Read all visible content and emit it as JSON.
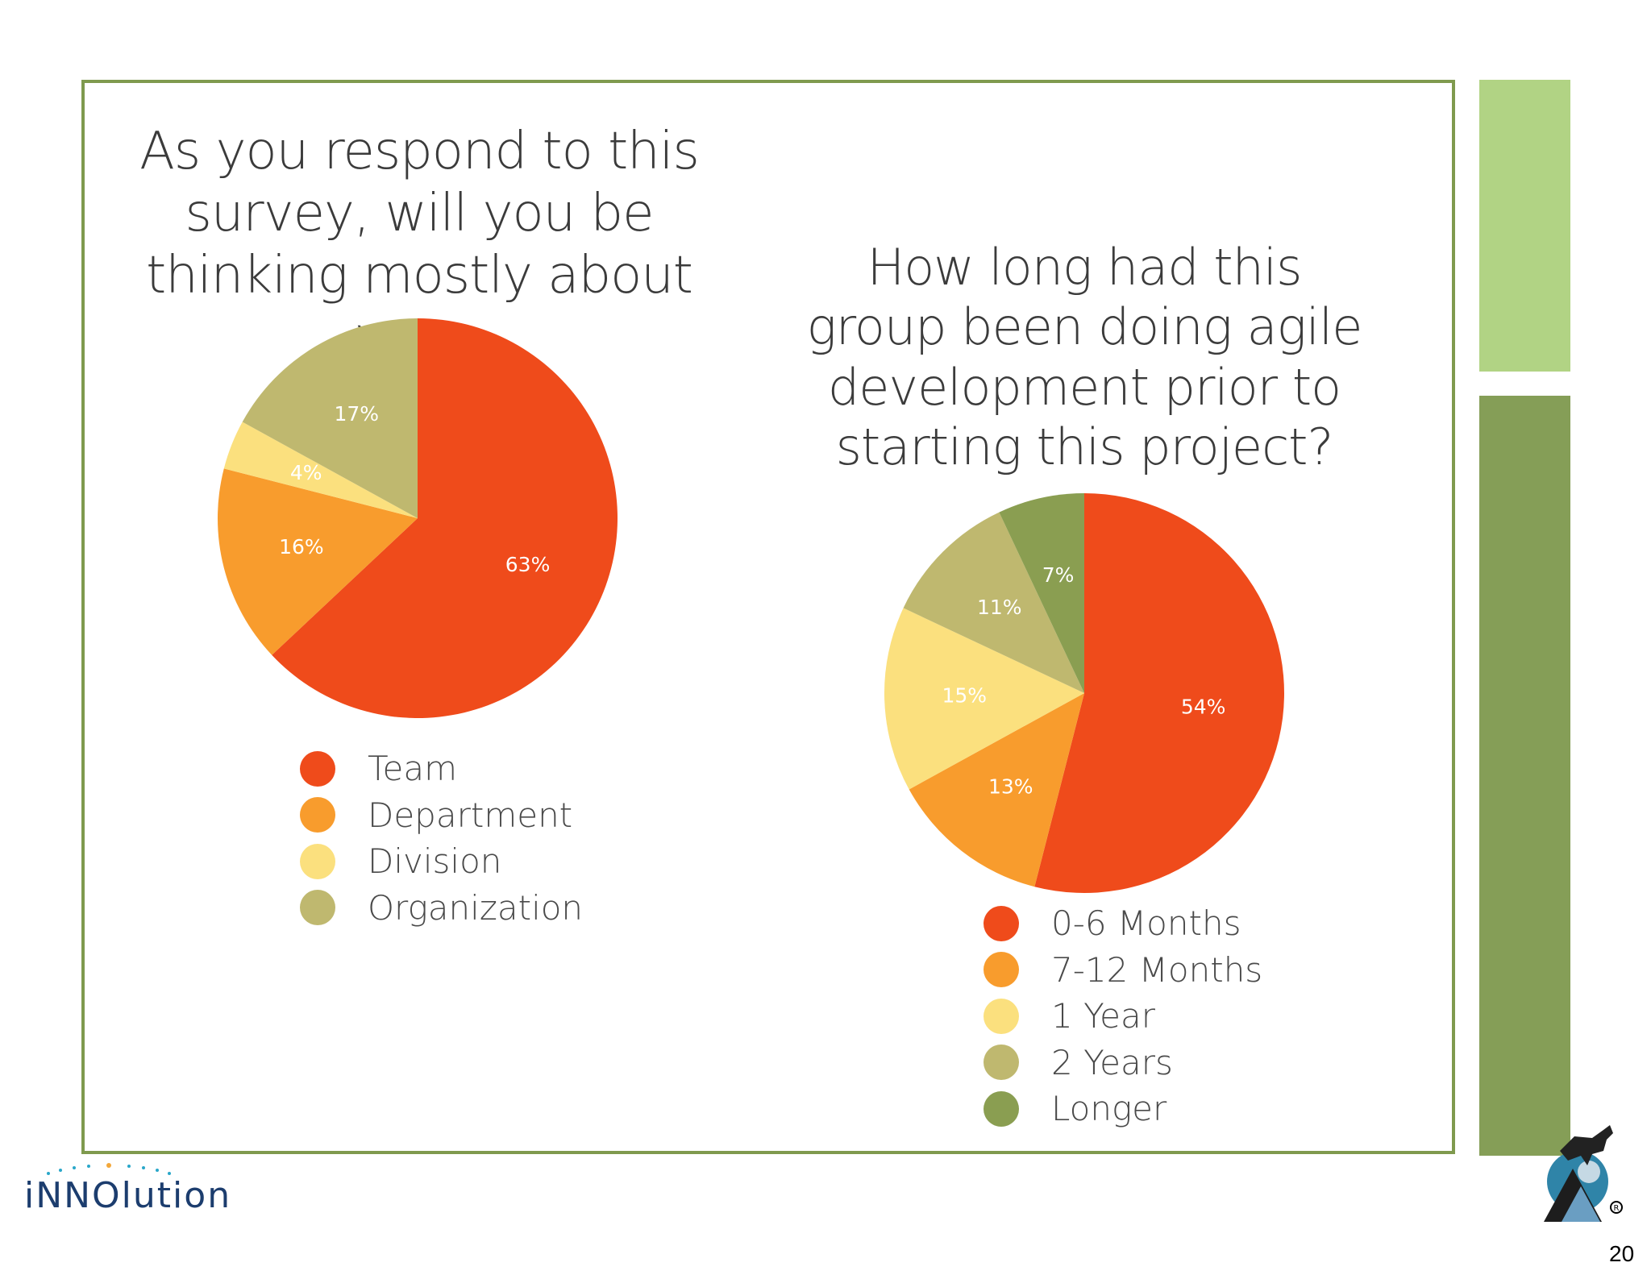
{
  "slide": {
    "page_number": "20",
    "logo_text": "iNNOlution",
    "colors": {
      "frame": "#7f9a4e",
      "bar_light": "#b1d384",
      "bar_dark": "#859e57"
    }
  },
  "chart_data": [
    {
      "type": "pie",
      "title": "As you respond to this survey, will you be thinking mostly about your:",
      "legend_position": "bottom",
      "categories": [
        "Team",
        "Department",
        "Division",
        "Organization"
      ],
      "values": [
        63,
        16,
        4,
        17
      ],
      "labels": [
        "63%",
        "16%",
        "4%",
        "17%"
      ],
      "colors": [
        "#ef4b1b",
        "#f89c2d",
        "#fbe07e",
        "#bfb86f"
      ]
    },
    {
      "type": "pie",
      "title": "How long had this group been doing agile development prior to starting this project?",
      "legend_position": "bottom",
      "categories": [
        "0-6 Months",
        "7-12 Months",
        "1 Year",
        "2 Years",
        "Longer"
      ],
      "values": [
        54,
        13,
        15,
        11,
        7
      ],
      "labels": [
        "54%",
        "13%",
        "15%",
        "11%",
        "7%"
      ],
      "colors": [
        "#ef4b1b",
        "#f89c2d",
        "#fbe07e",
        "#bfb86f",
        "#8a9e51"
      ]
    }
  ]
}
